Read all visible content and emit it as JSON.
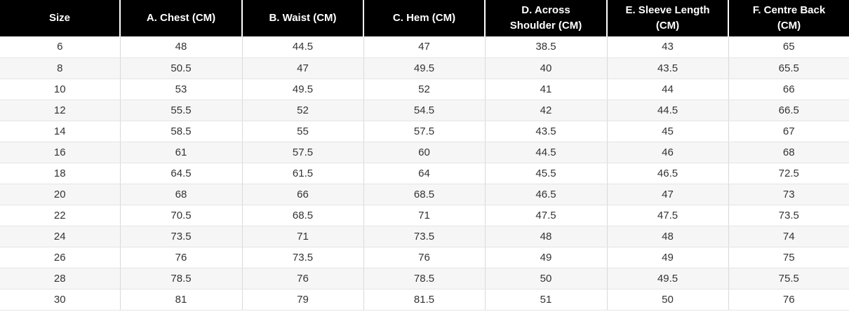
{
  "size_chart": {
    "headers": [
      [
        "Size"
      ],
      [
        "A. Chest (CM)"
      ],
      [
        "B. Waist (CM)"
      ],
      [
        "C. Hem (CM)"
      ],
      [
        "D. Across",
        "Shoulder (CM)"
      ],
      [
        "E. Sleeve Length",
        "(CM)"
      ],
      [
        "F. Centre Back",
        "(CM)"
      ]
    ],
    "rows": [
      [
        "6",
        "48",
        "44.5",
        "47",
        "38.5",
        "43",
        "65"
      ],
      [
        "8",
        "50.5",
        "47",
        "49.5",
        "40",
        "43.5",
        "65.5"
      ],
      [
        "10",
        "53",
        "49.5",
        "52",
        "41",
        "44",
        "66"
      ],
      [
        "12",
        "55.5",
        "52",
        "54.5",
        "42",
        "44.5",
        "66.5"
      ],
      [
        "14",
        "58.5",
        "55",
        "57.5",
        "43.5",
        "45",
        "67"
      ],
      [
        "16",
        "61",
        "57.5",
        "60",
        "44.5",
        "46",
        "68"
      ],
      [
        "18",
        "64.5",
        "61.5",
        "64",
        "45.5",
        "46.5",
        "72.5"
      ],
      [
        "20",
        "68",
        "66",
        "68.5",
        "46.5",
        "47",
        "73"
      ],
      [
        "22",
        "70.5",
        "68.5",
        "71",
        "47.5",
        "47.5",
        "73.5"
      ],
      [
        "24",
        "73.5",
        "71",
        "73.5",
        "48",
        "48",
        "74"
      ],
      [
        "26",
        "76",
        "73.5",
        "76",
        "49",
        "49",
        "75"
      ],
      [
        "28",
        "78.5",
        "76",
        "78.5",
        "50",
        "49.5",
        "75.5"
      ],
      [
        "30",
        "81",
        "79",
        "81.5",
        "51",
        "50",
        "76"
      ]
    ]
  }
}
